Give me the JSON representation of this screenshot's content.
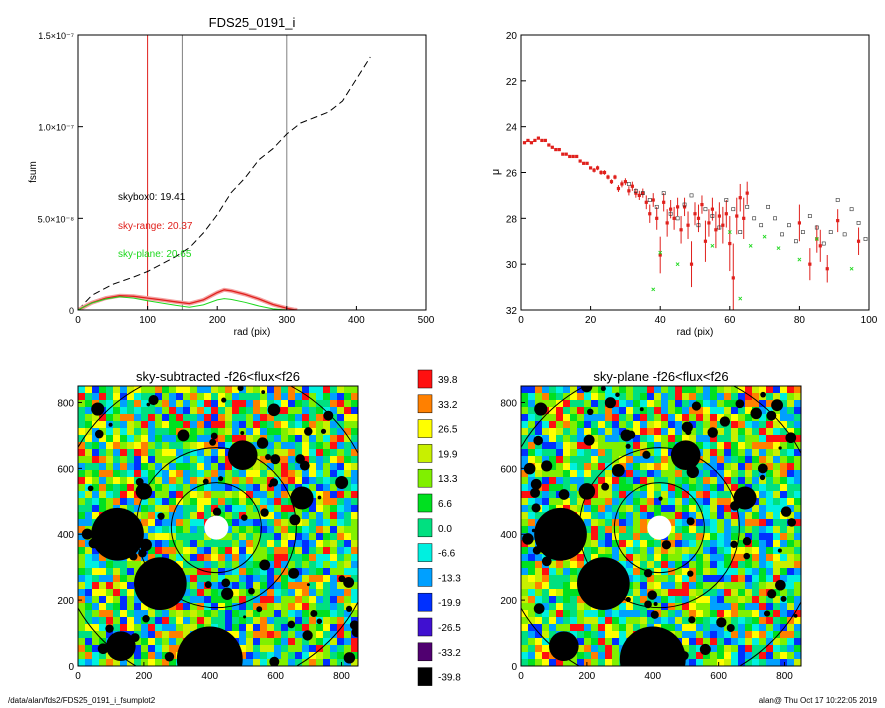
{
  "colors": {
    "red": "#e0201c",
    "green": "#1ed81e",
    "black": "#000000",
    "gray": "#808080"
  },
  "chart_data": [
    {
      "type": "line",
      "title": "FDS25_0191_i",
      "xlabel": "rad (pix)",
      "ylabel": "fsum",
      "xlim": [
        0,
        500
      ],
      "ylim": [
        0,
        1.5e-07
      ],
      "xticks": [
        "0",
        "100",
        "200",
        "300",
        "400",
        "500"
      ],
      "yticks": [
        {
          "v": 0,
          "label": "0"
        },
        {
          "v": 5e-08,
          "label": "5.0×10⁻⁸"
        },
        {
          "v": 1e-07,
          "label": "1.0×10⁻⁷"
        },
        {
          "v": 1.5e-07,
          "label": "1.5×10⁻⁷"
        }
      ],
      "annotations": [
        "skybox0: 19.41",
        "sky-range: 20.37",
        "sky-plane: 20.65"
      ],
      "vlines": [
        {
          "x": 100,
          "color": "red"
        },
        {
          "x": 150,
          "color": "gray"
        },
        {
          "x": 300,
          "color": "gray"
        }
      ],
      "series": [
        {
          "style": "dashed-black",
          "x": [
            0,
            20,
            50,
            80,
            100,
            120,
            140,
            160,
            180,
            200,
            220,
            240,
            260,
            280,
            300,
            320,
            340,
            360,
            380,
            400,
            420
          ],
          "y": [
            0,
            8e-09,
            1.4e-08,
            1.8e-08,
            2.1e-08,
            2.5e-08,
            2.9e-08,
            3.4e-08,
            4.2e-08,
            5.2e-08,
            6.4e-08,
            7.2e-08,
            8.2e-08,
            8.8e-08,
            9.6e-08,
            1.02e-07,
            1.05e-07,
            1.08e-07,
            1.14e-07,
            1.26e-07,
            1.38e-07
          ]
        },
        {
          "style": "red",
          "x": [
            0,
            10,
            20,
            40,
            60,
            80,
            100,
            120,
            140,
            160,
            180,
            200,
            210,
            220,
            240,
            260,
            280,
            300,
            310,
            315
          ],
          "y": [
            0,
            2e-09,
            4e-09,
            6.5e-09,
            7.8e-09,
            7.5e-09,
            6.5e-09,
            5.5e-09,
            4.5e-09,
            3.5e-09,
            5.5e-09,
            9.5e-09,
            1.1e-08,
            1.05e-08,
            8.5e-09,
            6e-09,
            3e-09,
            1e-09,
            2e-10,
            0
          ]
        },
        {
          "style": "green",
          "x": [
            0,
            10,
            20,
            40,
            60,
            80,
            100,
            120,
            140,
            160,
            180,
            200,
            210,
            220,
            240,
            260,
            280,
            300,
            310,
            315
          ],
          "y": [
            0,
            2e-09,
            3.8e-09,
            6e-09,
            7.2e-09,
            6.5e-09,
            5e-09,
            3.8e-09,
            2.6e-09,
            1.5e-09,
            2.8e-09,
            5.5e-09,
            6.2e-09,
            5.8e-09,
            4.2e-09,
            2.2e-09,
            6e-10,
            0,
            0,
            0
          ]
        }
      ]
    },
    {
      "type": "scatter",
      "xlabel": "rad (pix)",
      "ylabel": "μ",
      "xlim": [
        0,
        100
      ],
      "ylim": [
        32,
        20
      ],
      "xticks": [
        "0",
        "20",
        "40",
        "60",
        "80",
        "100"
      ],
      "yticks": [
        "20",
        "22",
        "24",
        "26",
        "28",
        "30",
        "32"
      ],
      "series": [
        {
          "style": "red-errorbar",
          "x": [
            1,
            2,
            3,
            4,
            5,
            6,
            7,
            8,
            9,
            10,
            11,
            12,
            13,
            14,
            15,
            16,
            17,
            18,
            19,
            20,
            21,
            22,
            23,
            24,
            25,
            26,
            27,
            28,
            29,
            30,
            31,
            32,
            33,
            34,
            35,
            36,
            37,
            38,
            39,
            40,
            41,
            42,
            43,
            44,
            45,
            46,
            47,
            48,
            49,
            50,
            51,
            52,
            53,
            54,
            55,
            56,
            57,
            58,
            59,
            60,
            61,
            62,
            63,
            64,
            65,
            80,
            83,
            85,
            86,
            88,
            91,
            97
          ],
          "y": [
            24.7,
            24.6,
            24.7,
            24.6,
            24.5,
            24.6,
            24.6,
            24.8,
            24.9,
            25.0,
            25.0,
            25.2,
            25.2,
            25.3,
            25.3,
            25.3,
            25.5,
            25.6,
            25.6,
            25.8,
            25.9,
            25.8,
            26.0,
            26.0,
            26.2,
            26.4,
            26.2,
            26.7,
            26.5,
            26.4,
            26.8,
            26.6,
            26.9,
            27.0,
            26.9,
            27.3,
            27.8,
            27.2,
            28.0,
            29.6,
            27.3,
            28.2,
            27.6,
            28.0,
            27.5,
            28.5,
            27.5,
            28.3,
            30.0,
            27.8,
            28.0,
            27.4,
            29.0,
            28.2,
            27.6,
            28.5,
            27.9,
            28.3,
            27.8,
            29.1,
            30.6,
            27.9,
            27.1,
            28.0,
            26.9,
            28.2,
            30.0,
            28.9,
            29.2,
            30.2,
            28.1,
            29.0
          ],
          "yerr": [
            0.05,
            0.05,
            0.05,
            0.05,
            0.05,
            0.05,
            0.05,
            0.05,
            0.05,
            0.05,
            0.05,
            0.05,
            0.05,
            0.05,
            0.05,
            0.05,
            0.05,
            0.05,
            0.05,
            0.05,
            0.1,
            0.1,
            0.1,
            0.1,
            0.1,
            0.1,
            0.1,
            0.15,
            0.15,
            0.15,
            0.2,
            0.2,
            0.2,
            0.2,
            0.2,
            0.3,
            0.4,
            0.3,
            0.5,
            0.8,
            0.4,
            0.6,
            0.4,
            0.5,
            0.4,
            0.6,
            0.4,
            0.6,
            1.0,
            0.5,
            0.6,
            0.4,
            0.9,
            0.6,
            0.5,
            0.8,
            0.6,
            0.8,
            0.6,
            1.2,
            1.5,
            0.8,
            0.6,
            0.9,
            0.5,
            0.8,
            0.7,
            0.6,
            0.7,
            0.6,
            0.5,
            0.6
          ]
        },
        {
          "style": "black-square",
          "x": [
            31,
            33,
            35,
            37,
            39,
            41,
            43,
            45,
            47,
            49,
            51,
            53,
            55,
            57,
            59,
            61,
            63,
            65,
            67,
            69,
            71,
            73,
            75,
            77,
            79,
            81,
            83,
            85,
            87,
            89,
            91,
            93,
            95,
            97,
            99
          ],
          "y": [
            26.5,
            26.8,
            26.9,
            27.2,
            27.5,
            26.9,
            27.8,
            28.0,
            27.4,
            27.0,
            28.3,
            27.6,
            27.9,
            28.4,
            27.2,
            27.6,
            28.6,
            27.5,
            28.0,
            28.3,
            27.5,
            28.0,
            28.7,
            28.3,
            29.0,
            28.6,
            27.9,
            28.4,
            29.1,
            28.6,
            27.2,
            28.7,
            27.6,
            28.2,
            28.9
          ]
        },
        {
          "style": "green-x",
          "x": [
            38,
            40,
            45,
            55,
            60,
            63,
            66,
            70,
            74,
            80,
            85,
            95
          ],
          "y": [
            31.1,
            29.5,
            30.0,
            29.2,
            28.6,
            31.5,
            29.2,
            28.8,
            29.3,
            29.8,
            28.9,
            30.2
          ]
        }
      ]
    },
    {
      "type": "heatmap",
      "title": "sky-subtracted -f26<flux<f26",
      "xlim": [
        0,
        850
      ],
      "ylim": [
        0,
        850
      ],
      "xticks": [
        "0",
        "200",
        "400",
        "600",
        "800"
      ],
      "yticks": [
        "0",
        "200",
        "400",
        "600",
        "800"
      ]
    },
    {
      "type": "heatmap",
      "title": "sky-plane -f26<flux<f26",
      "xlim": [
        0,
        850
      ],
      "ylim": [
        0,
        850
      ],
      "xticks": [
        "0",
        "200",
        "400",
        "600",
        "800"
      ],
      "yticks": [
        "0",
        "200",
        "400",
        "600",
        "800"
      ]
    }
  ],
  "colorbar": {
    "labels": [
      "39.8",
      "33.2",
      "26.5",
      "19.9",
      "13.3",
      "6.6",
      "0.0",
      "-6.6",
      "-13.3",
      "-19.9",
      "-26.5",
      "-33.2",
      "-39.8"
    ],
    "colors": [
      "#ff1010",
      "#ff8000",
      "#ffff00",
      "#c8f000",
      "#80f000",
      "#00e020",
      "#00e080",
      "#00f0e0",
      "#00a0ff",
      "#0030ff",
      "#4010d0",
      "#500070",
      "#000000"
    ]
  },
  "footer": {
    "path": "/data/alan/fds2/FDS25_0191_i_fsumplot2",
    "stamp": "alan@  Thu Oct 17 10:22:05 2019"
  }
}
